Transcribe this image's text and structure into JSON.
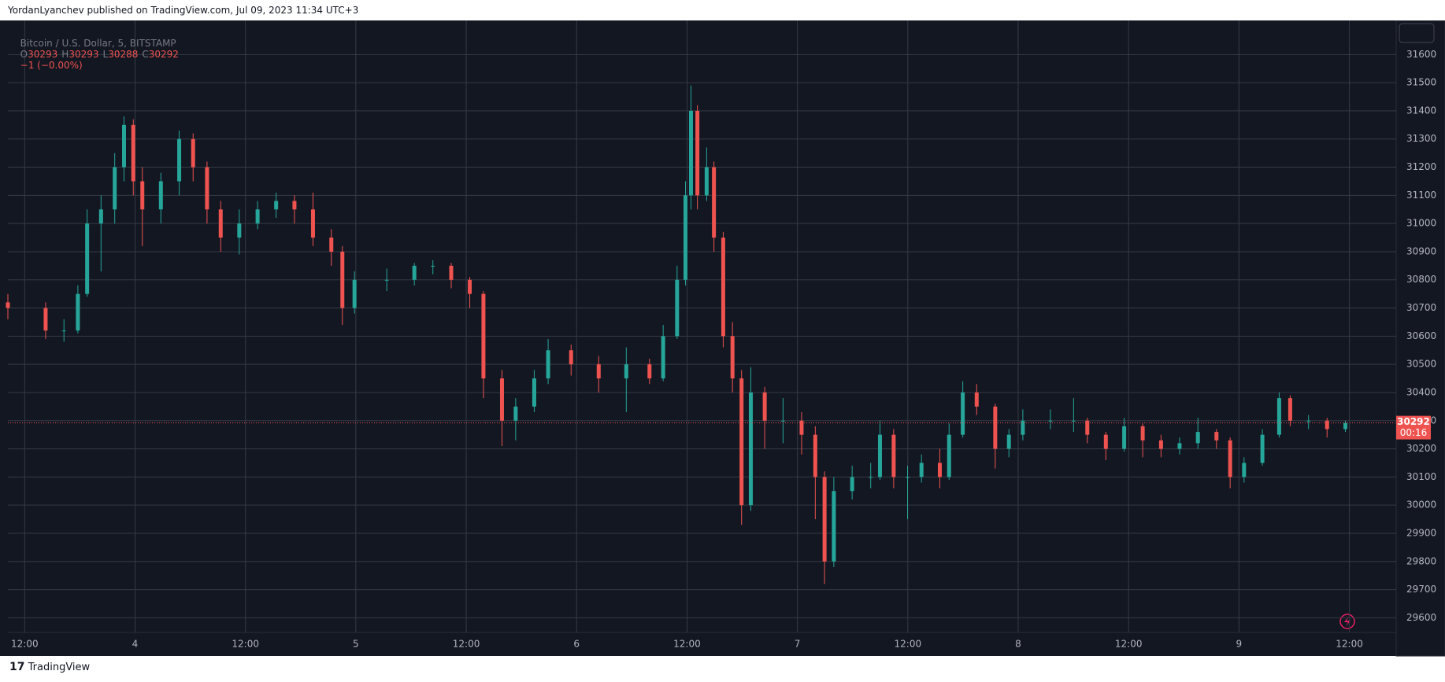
{
  "header": "YordanLyanchev published on TradingView.com, Jul 09, 2023 11:34 UTC+3",
  "footer": "TradingView",
  "chart_data": {
    "type": "candlestick",
    "title": "Bitcoin / U.S. Dollar, 5, BITSTAMP",
    "ohlc_readout": [
      {
        "label": "O",
        "value": 30293
      },
      {
        "label": "H",
        "value": 30293
      },
      {
        "label": "L",
        "value": 30288
      },
      {
        "label": "C",
        "value": 30292
      }
    ],
    "change": "−1 (−0.00%)",
    "last_price": {
      "value": 30292,
      "countdown": "00:16"
    },
    "up_color": "#26a69a",
    "down_color": "#ef5350",
    "grid": true,
    "xlim": [
      3.424,
      9.712
    ],
    "ylim": [
      29548,
      31721
    ],
    "xticks": [
      {
        "value": 3.5,
        "label": "12:00"
      },
      4,
      {
        "value": 4.5,
        "label": "12:00"
      },
      5,
      {
        "value": 5.5,
        "label": "12:00"
      },
      6,
      {
        "value": 6.5,
        "label": "12:00"
      },
      7,
      {
        "value": 7.5,
        "label": "12:00"
      },
      8,
      {
        "value": 8.5,
        "label": "12:00"
      },
      9,
      {
        "value": 9.5,
        "label": "12:00"
      }
    ],
    "yticks": [
      29600,
      29700,
      29800,
      29900,
      30000,
      30100,
      30200,
      30300,
      30400,
      30500,
      30600,
      30700,
      30800,
      30900,
      31000,
      31100,
      31200,
      31300,
      31400,
      31500,
      31600
    ],
    "x": [
      3.424,
      3.595,
      3.678,
      3.741,
      3.783,
      3.846,
      3.908,
      3.95,
      3.992,
      4.033,
      4.117,
      4.2,
      4.263,
      4.326,
      4.388,
      4.472,
      4.555,
      4.639,
      4.722,
      4.806,
      4.889,
      4.939,
      4.994,
      5.14,
      5.265,
      5.349,
      5.432,
      5.516,
      5.578,
      5.662,
      5.724,
      5.808,
      5.871,
      5.975,
      6.1,
      6.225,
      6.33,
      6.392,
      6.455,
      6.493,
      6.518,
      6.547,
      6.589,
      6.622,
      6.664,
      6.706,
      6.747,
      6.789,
      6.852,
      6.935,
      7.019,
      7.081,
      7.123,
      7.165,
      7.248,
      7.332,
      7.374,
      7.436,
      7.499,
      7.562,
      7.645,
      7.687,
      7.749,
      7.812,
      7.896,
      7.958,
      8.021,
      8.146,
      8.251,
      8.313,
      8.397,
      8.48,
      8.564,
      8.647,
      8.731,
      8.814,
      8.898,
      8.96,
      9.023,
      9.106,
      9.182,
      9.232,
      9.315,
      9.399,
      9.482
    ],
    "open": [
      30720,
      30700,
      30620,
      30620,
      30750,
      31000,
      31050,
      31200,
      31350,
      31150,
      31050,
      31150,
      31300,
      31200,
      31050,
      30950,
      31000,
      31050,
      31080,
      31050,
      30950,
      30900,
      30700,
      30800,
      30800,
      30850,
      30850,
      30800,
      30750,
      30450,
      30300,
      30350,
      30450,
      30550,
      30500,
      30450,
      30500,
      30450,
      30600,
      30800,
      31100,
      31400,
      31100,
      31200,
      30950,
      30600,
      30450,
      30000,
      30400,
      30300,
      30300,
      30250,
      30100,
      29800,
      30050,
      30100,
      30100,
      30250,
      30100,
      30100,
      30150,
      30100,
      30250,
      30400,
      30350,
      30200,
      30250,
      30300,
      30300,
      30300,
      30250,
      30200,
      30280,
      30230,
      30200,
      30220,
      30260,
      30230,
      30100,
      30150,
      30250,
      30380,
      30300,
      30300,
      30270
    ],
    "high": [
      30750,
      30720,
      30660,
      30780,
      31050,
      31100,
      31250,
      31380,
      31370,
      31200,
      31180,
      31330,
      31320,
      31220,
      31080,
      31050,
      31080,
      31110,
      31100,
      31110,
      30980,
      30920,
      30830,
      30840,
      30860,
      30870,
      30860,
      30810,
      30760,
      30480,
      30380,
      30480,
      30590,
      30570,
      30530,
      30560,
      30520,
      30640,
      30850,
      31150,
      31490,
      31420,
      31270,
      31220,
      30970,
      30650,
      30480,
      30490,
      30420,
      30380,
      30330,
      30280,
      30120,
      30100,
      30140,
      30150,
      30300,
      30270,
      30140,
      30180,
      30200,
      30290,
      30440,
      30430,
      30360,
      30270,
      30340,
      30340,
      30380,
      30310,
      30260,
      30310,
      30290,
      30250,
      30240,
      30310,
      30270,
      30240,
      30170,
      30270,
      30400,
      30390,
      30320,
      30310,
      30300
    ],
    "low": [
      30660,
      30590,
      30580,
      30610,
      30740,
      30830,
      31000,
      31150,
      31100,
      30920,
      31000,
      31100,
      31150,
      31000,
      30900,
      30890,
      30980,
      31020,
      31000,
      30920,
      30850,
      30640,
      30680,
      30760,
      30780,
      30820,
      30770,
      30700,
      30380,
      30210,
      30230,
      30330,
      30430,
      30460,
      30400,
      30330,
      30430,
      30440,
      30590,
      30780,
      31050,
      31050,
      31080,
      30900,
      30560,
      30400,
      29930,
      29980,
      30200,
      30220,
      30180,
      29950,
      29720,
      29780,
      30020,
      30060,
      30090,
      30060,
      29950,
      30080,
      30060,
      30090,
      30240,
      30320,
      30130,
      30170,
      30230,
      30270,
      30260,
      30220,
      30160,
      30190,
      30170,
      30170,
      30180,
      30200,
      30200,
      30060,
      30080,
      30140,
      30240,
      30280,
      30270,
      30240,
      30260
    ],
    "close": [
      30700,
      30620,
      30620,
      30750,
      31000,
      31050,
      31200,
      31350,
      31150,
      31050,
      31150,
      31300,
      31200,
      31050,
      30950,
      31000,
      31050,
      31080,
      31050,
      30950,
      30900,
      30700,
      30800,
      30800,
      30850,
      30850,
      30800,
      30750,
      30450,
      30300,
      30350,
      30450,
      30550,
      30500,
      30450,
      30500,
      30450,
      30600,
      30800,
      31100,
      31400,
      31100,
      31200,
      30950,
      30600,
      30450,
      30000,
      30400,
      30300,
      30300,
      30250,
      30100,
      29800,
      30050,
      30100,
      30100,
      30250,
      30100,
      30100,
      30150,
      30100,
      30250,
      30400,
      30350,
      30200,
      30250,
      30300,
      30300,
      30300,
      30250,
      30200,
      30280,
      30230,
      30200,
      30220,
      30260,
      30230,
      30100,
      30150,
      30250,
      30380,
      30300,
      30300,
      30270,
      30292
    ]
  }
}
